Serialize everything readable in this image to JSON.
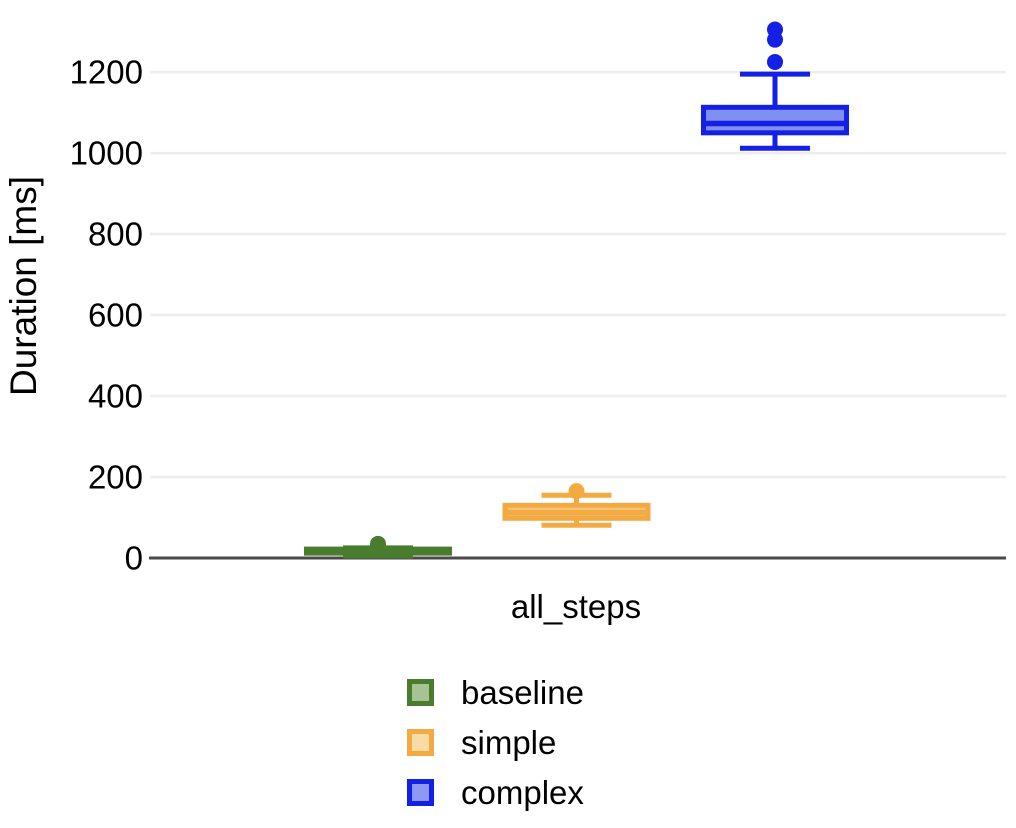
{
  "chart_data": {
    "type": "boxplot",
    "title": "",
    "ylabel": "Duration [ms]",
    "xlabel": "",
    "categories": [
      "all_steps"
    ],
    "yticks": [
      0,
      200,
      400,
      600,
      800,
      1000,
      1200
    ],
    "ylim": [
      0,
      1378
    ],
    "grid": true,
    "legend_position": "bottom",
    "colors": {
      "background": "#ffffff",
      "gridline": "#ededed",
      "axis_line": "#4a4a4a",
      "text": "#000000"
    },
    "series": [
      {
        "name": "baseline",
        "color": "#4a7c2e",
        "fill": "#9dbb87",
        "legend_fill": "#a7c295",
        "stats": {
          "low": 5,
          "q1": 12,
          "median": 17,
          "q3": 22,
          "high": 25,
          "outliers": [
            35
          ]
        }
      },
      {
        "name": "simple",
        "color": "#f3aa42",
        "fill": "#f6c87e",
        "legend_fill": "#f8dca6",
        "stats": {
          "low": 81,
          "q1": 98,
          "median": 112,
          "q3": 130,
          "high": 155,
          "outliers": [
            165
          ]
        }
      },
      {
        "name": "complex",
        "color": "#1520e6",
        "fill": "#8090f0",
        "legend_fill": "#8e99f4",
        "stats": {
          "low": 1012,
          "q1": 1050,
          "median": 1073,
          "q3": 1113,
          "high": 1195,
          "outliers": [
            1225,
            1280,
            1305
          ]
        }
      }
    ]
  }
}
